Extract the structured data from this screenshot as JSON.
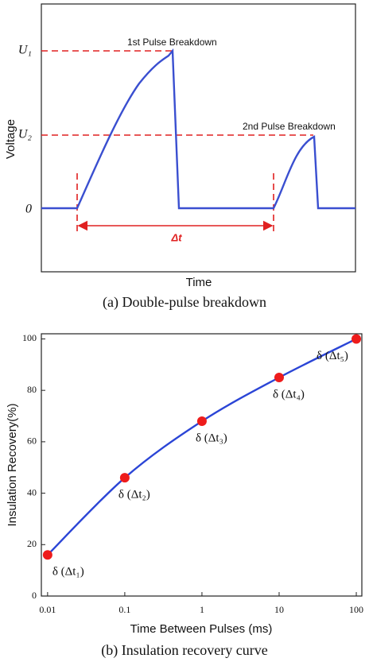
{
  "chart_data": [
    {
      "type": "schematic",
      "ylabel": "Voltage",
      "xlabel": "Time",
      "levels": [
        "U₁",
        "U₂",
        "0"
      ],
      "annotations": [
        "1st Pulse Breakdown",
        "2nd Pulse Breakdown",
        "Δt"
      ],
      "caption": "(a) Double-pulse breakdown"
    },
    {
      "type": "line",
      "xlabel": "Time Between Pulses (ms)",
      "ylabel": "Insulation Recovery(%)",
      "x": [
        0.01,
        0.1,
        1,
        10,
        100
      ],
      "values": [
        16,
        46,
        68,
        85,
        100
      ],
      "point_labels": [
        "δ (Δt₁)",
        "δ (Δt₂)",
        "δ (Δt₃)",
        "δ (Δt₄)",
        "δ (Δt₅)"
      ],
      "xlim": [
        0.0083,
        118
      ],
      "ylim": [
        0,
        102
      ],
      "log_x": true,
      "xticks": [
        0.01,
        0.1,
        1,
        10,
        100
      ],
      "yticks": [
        0,
        20,
        40,
        60,
        80,
        100
      ],
      "line_color": "#2b45d6",
      "marker_color": "#ee1c1c",
      "caption": "(b) Insulation recovery curve"
    }
  ]
}
